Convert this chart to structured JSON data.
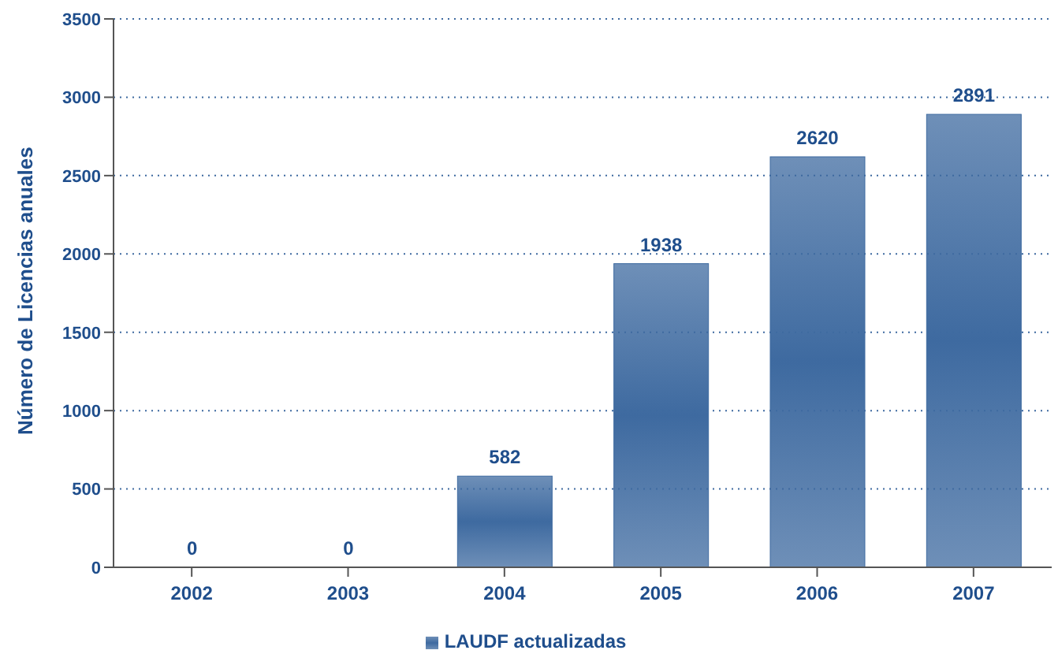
{
  "chart_data": {
    "type": "bar",
    "ylabel": "Número de Licencias anuales",
    "categories": [
      "2002",
      "2003",
      "2004",
      "2005",
      "2006",
      "2007"
    ],
    "series": [
      {
        "name": "LAUDF actualizadas",
        "color": "#3e6aa0",
        "values": [
          0,
          0,
          582,
          1938,
          2620,
          2891
        ]
      }
    ],
    "ylim": [
      0,
      3500
    ],
    "yticks": [
      0,
      500,
      1000,
      1500,
      2000,
      2500,
      3000,
      3500
    ],
    "grid": "y",
    "legend": "bottom",
    "data_labels": true
  }
}
